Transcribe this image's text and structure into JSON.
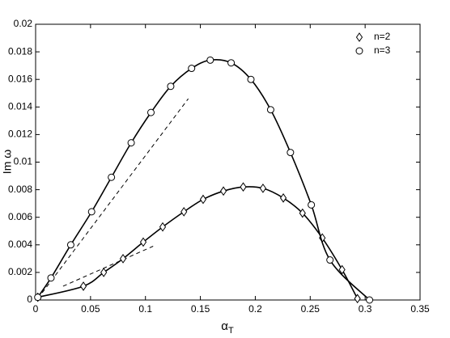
{
  "chart_data": {
    "type": "line",
    "xlabel": {
      "text": "α",
      "subscript": "T"
    },
    "ylabel": "Im ω",
    "xlim": [
      0,
      0.35
    ],
    "xticks": [
      0,
      0.05,
      0.1,
      0.15,
      0.2,
      0.25,
      0.3,
      0.35
    ],
    "ylim": [
      0,
      0.02
    ],
    "yticks": [
      0,
      0.002,
      0.004,
      0.006,
      0.008,
      0.01,
      0.012,
      0.014,
      0.016,
      0.018,
      0.02
    ],
    "legend": "top-right",
    "series": [
      {
        "name": "n=2",
        "color": "#000000",
        "marker": "diamond",
        "x": [
          0.002,
          0.0435,
          0.062,
          0.0796,
          0.098,
          0.1157,
          0.135,
          0.1525,
          0.171,
          0.189,
          0.207,
          0.2255,
          0.243,
          0.261,
          0.279,
          0.293
        ],
        "values": [
          0.0002,
          0.001,
          0.002,
          0.003,
          0.0042,
          0.0053,
          0.0064,
          0.0073,
          0.0079,
          0.0082,
          0.0081,
          0.0074,
          0.0063,
          0.0045,
          0.0022,
          0.0001
        ]
      },
      {
        "name": "n=3",
        "color": "#000000",
        "marker": "circle",
        "x": [
          0.002,
          0.014,
          0.032,
          0.051,
          0.069,
          0.087,
          0.105,
          0.123,
          0.142,
          0.159,
          0.178,
          0.196,
          0.214,
          0.232,
          0.251,
          0.268,
          0.304
        ],
        "values": [
          0.0002,
          0.0016,
          0.004,
          0.0064,
          0.0089,
          0.0114,
          0.0136,
          0.0155,
          0.0168,
          0.0174,
          0.0172,
          0.016,
          0.0138,
          0.0107,
          0.0069,
          0.0029,
          0
        ]
      }
    ],
    "dashed_lines": [
      {
        "x": [
          0.002,
          0.139
        ],
        "values": [
          0.0001,
          0.0146
        ]
      },
      {
        "x": [
          0.025,
          0.107
        ],
        "values": [
          0.001,
          0.0039
        ]
      }
    ]
  }
}
